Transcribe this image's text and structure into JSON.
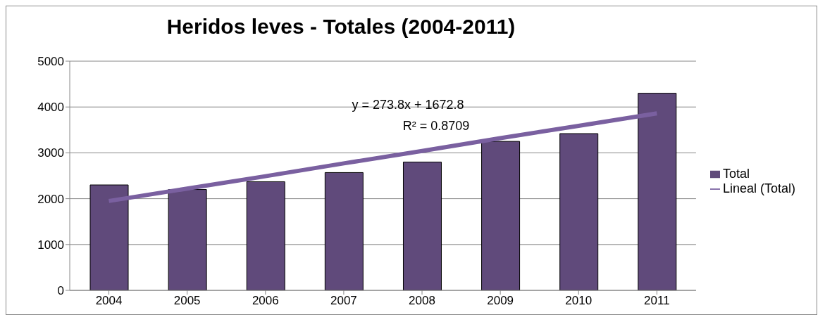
{
  "chart_data": {
    "type": "bar",
    "title": "Heridos leves - Totales (2004-2011)",
    "categories": [
      "2004",
      "2005",
      "2006",
      "2007",
      "2008",
      "2009",
      "2010",
      "2011"
    ],
    "series": [
      {
        "name": "Total",
        "color": "#604a7b",
        "values": [
          2300,
          2200,
          2370,
          2570,
          2800,
          3250,
          3420,
          4300
        ]
      },
      {
        "name": "Lineal (Total)",
        "type": "line",
        "color": "#7a60a0",
        "values": [
          1950,
          2220,
          2490,
          2770,
          3040,
          3320,
          3590,
          3860
        ]
      }
    ],
    "annotations": [
      "y = 273.8x + 1672.8",
      "R² = 0.8709"
    ],
    "ylim": [
      0,
      5000
    ],
    "yticks": [
      0,
      1000,
      2000,
      3000,
      4000,
      5000
    ],
    "grid": "y",
    "legend": "right"
  }
}
